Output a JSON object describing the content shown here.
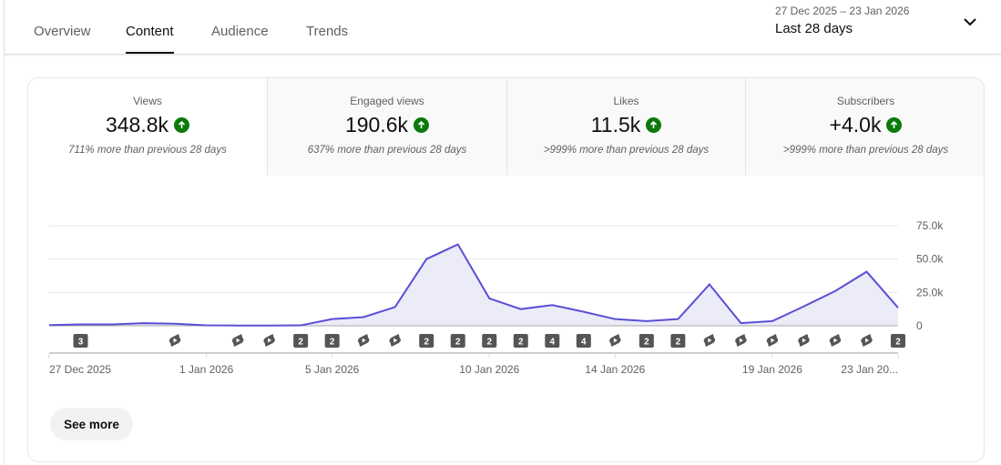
{
  "tabs": [
    {
      "label": "Overview"
    },
    {
      "label": "Content"
    },
    {
      "label": "Audience"
    },
    {
      "label": "Trends"
    }
  ],
  "date_range": {
    "range": "27 Dec 2025 – 23 Jan 2026",
    "period": "Last 28 days"
  },
  "metrics": [
    {
      "label": "Views",
      "value": "348.8k",
      "delta": "711% more than previous 28 days"
    },
    {
      "label": "Engaged views",
      "value": "190.6k",
      "delta": "637% more than previous 28 days"
    },
    {
      "label": "Likes",
      "value": "11.5k",
      "delta": ">999% more than previous 28 days"
    },
    {
      "label": "Subscribers",
      "value": "+4.0k",
      "delta": ">999% more than previous 28 days"
    }
  ],
  "see_more": "See more",
  "colors": {
    "line": "#5a4fd6",
    "fill": "#ecebf8",
    "up": "#0b7a0b"
  },
  "chart_data": {
    "type": "area",
    "series": [
      {
        "name": "Views",
        "values": [
          0.5,
          1,
          1,
          2,
          1.5,
          0.3,
          0.2,
          0.2,
          0.3,
          5,
          6.5,
          14,
          50,
          61,
          20.5,
          12.5,
          15.5,
          10.5,
          5,
          3.5,
          5,
          31,
          2,
          3.5,
          14.5,
          26,
          40.5,
          13.5
        ]
      }
    ],
    "y_ticks": [
      "0",
      "25.0k",
      "50.0k",
      "75.0k"
    ],
    "ylim": [
      0,
      75
    ],
    "x_labels": [
      {
        "day": 0,
        "label": "27 Dec 2025"
      },
      {
        "day": 5,
        "label": "1 Jan 2026"
      },
      {
        "day": 9,
        "label": "5 Jan 2026"
      },
      {
        "day": 14,
        "label": "10 Jan 2026"
      },
      {
        "day": 18,
        "label": "14 Jan 2026"
      },
      {
        "day": 23,
        "label": "19 Jan 2026"
      },
      {
        "day": 27,
        "label": "23 Jan 20..."
      }
    ],
    "markers": [
      {
        "day": 1,
        "type": "count",
        "label": "3"
      },
      {
        "day": 4,
        "type": "short"
      },
      {
        "day": 6,
        "type": "short"
      },
      {
        "day": 7,
        "type": "short"
      },
      {
        "day": 8,
        "type": "count",
        "label": "2"
      },
      {
        "day": 9,
        "type": "count",
        "label": "2"
      },
      {
        "day": 10,
        "type": "short"
      },
      {
        "day": 11,
        "type": "short"
      },
      {
        "day": 12,
        "type": "count",
        "label": "2"
      },
      {
        "day": 13,
        "type": "count",
        "label": "2"
      },
      {
        "day": 14,
        "type": "count",
        "label": "2"
      },
      {
        "day": 15,
        "type": "count",
        "label": "2"
      },
      {
        "day": 16,
        "type": "count",
        "label": "4"
      },
      {
        "day": 17,
        "type": "count",
        "label": "4"
      },
      {
        "day": 18,
        "type": "short"
      },
      {
        "day": 19,
        "type": "count",
        "label": "2"
      },
      {
        "day": 20,
        "type": "count",
        "label": "2"
      },
      {
        "day": 21,
        "type": "short"
      },
      {
        "day": 22,
        "type": "short"
      },
      {
        "day": 23,
        "type": "short"
      },
      {
        "day": 24,
        "type": "short"
      },
      {
        "day": 25,
        "type": "short"
      },
      {
        "day": 26,
        "type": "short"
      },
      {
        "day": 27,
        "type": "count",
        "label": "2"
      }
    ]
  }
}
